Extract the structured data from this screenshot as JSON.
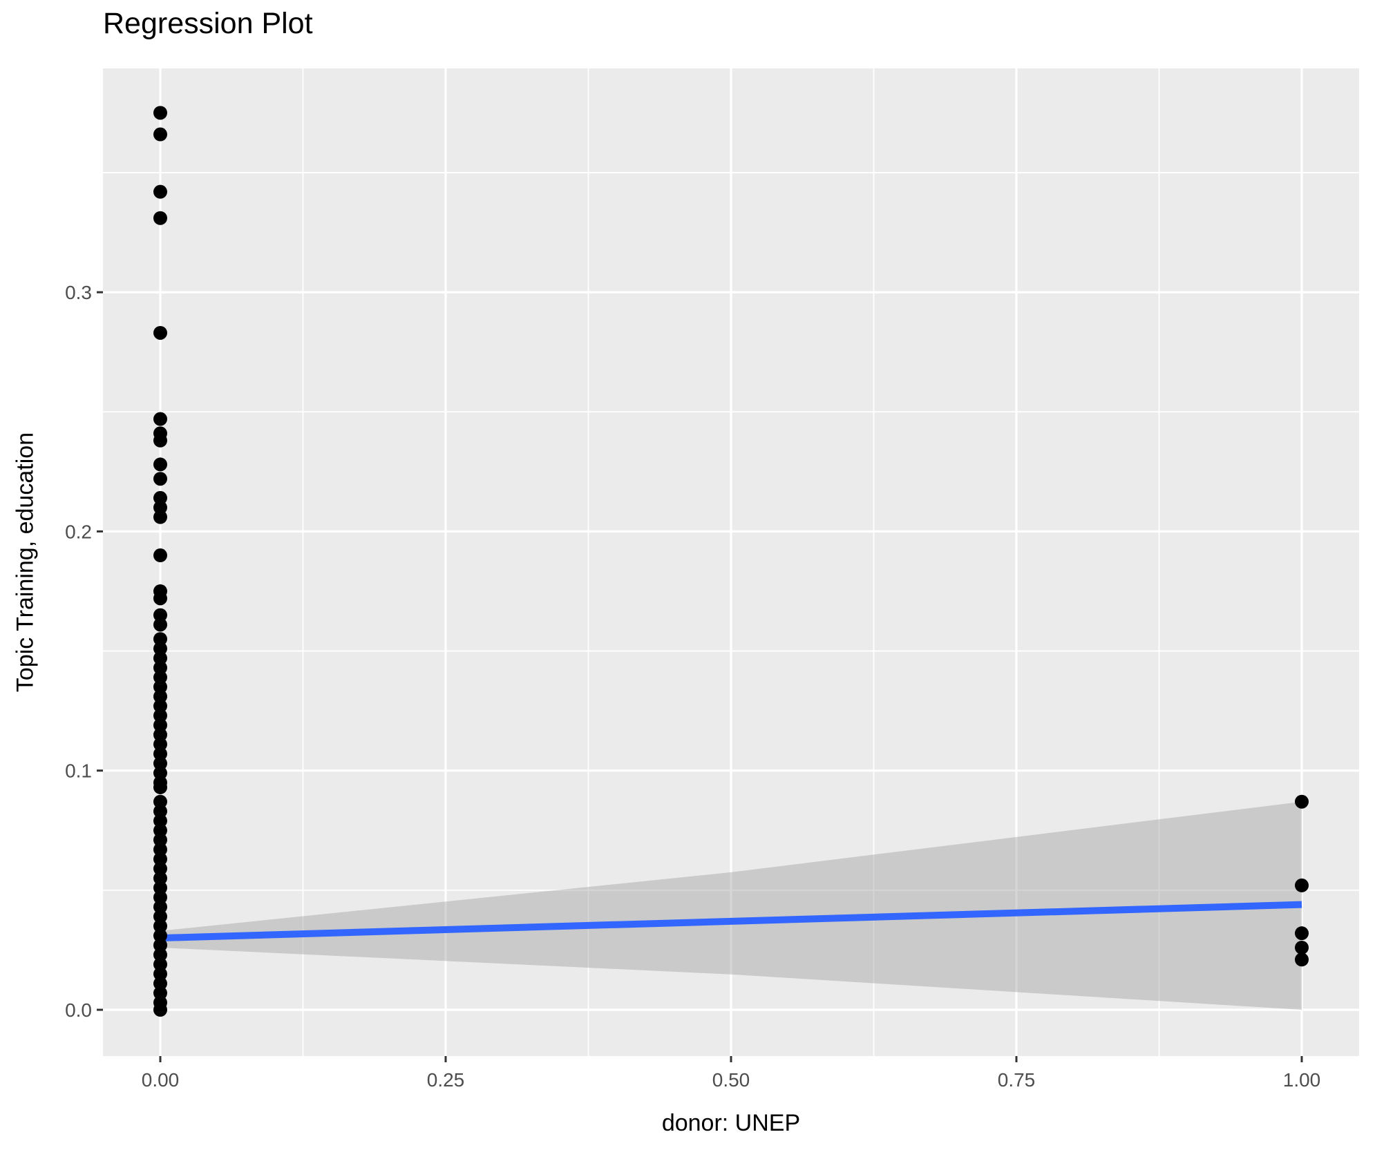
{
  "title": "Regression Plot",
  "chart_data": {
    "type": "scatter",
    "title": "Regression Plot",
    "xlabel": "donor: UNEP",
    "ylabel": "Topic Training, education",
    "grid": true,
    "legend": "none",
    "panel_theme": "ggplot-gray",
    "xlim": [
      -0.05,
      1.05
    ],
    "ylim": [
      -0.019,
      0.394
    ],
    "x_ticks": [
      0,
      0.25,
      0.5,
      0.75,
      1
    ],
    "x_tick_labels": [
      "0.00",
      "0.25",
      "0.50",
      "0.75",
      "1.00"
    ],
    "y_ticks": [
      0,
      0.1,
      0.2,
      0.3
    ],
    "y_tick_labels": [
      "0.0",
      "0.1",
      "0.2",
      "0.3"
    ],
    "x_minor_gridlines": [
      0.125,
      0.375,
      0.625,
      0.875
    ],
    "y_minor_gridlines": [
      0.05,
      0.15,
      0.25,
      0.35
    ],
    "series": [
      {
        "name": "observations at donor=0",
        "x": 0,
        "y": [
          0.375,
          0.366,
          0.342,
          0.331,
          0.283,
          0.247,
          0.241,
          0.238,
          0.228,
          0.222,
          0.214,
          0.21,
          0.206,
          0.19,
          0.175,
          0.172,
          0.165,
          0.161,
          0.155,
          0.151,
          0.147,
          0.143,
          0.139,
          0.135,
          0.131,
          0.127,
          0.123,
          0.119,
          0.115,
          0.111,
          0.107,
          0.103,
          0.099,
          0.095,
          0.093,
          0.087,
          0.083,
          0.079,
          0.075,
          0.071,
          0.067,
          0.063,
          0.059,
          0.055,
          0.051,
          0.047,
          0.043,
          0.039,
          0.035,
          0.031,
          0.027,
          0.023,
          0.019,
          0.015,
          0.011,
          0.007,
          0.003,
          0.0
        ]
      },
      {
        "name": "observations at donor=1",
        "x": 1,
        "y": [
          0.087,
          0.052,
          0.032,
          0.026,
          0.021
        ]
      }
    ],
    "regression_line": {
      "x": [
        0,
        1
      ],
      "y": [
        0.03,
        0.044
      ]
    },
    "confidence_band": {
      "x": [
        0,
        0.5,
        1
      ],
      "upper": [
        0.033,
        0.0575,
        0.087
      ],
      "lower": [
        0.026,
        0.0148,
        0.0
      ]
    },
    "colors": {
      "point": "#000000",
      "line": "#3366FF",
      "band": "#999999",
      "band_opacity": 0.4,
      "panel_background": "#EBEBEB",
      "gridline": "#FFFFFF",
      "tick_mark": "#333333",
      "tick_label": "#4D4D4D",
      "title_text": "#000000"
    }
  }
}
